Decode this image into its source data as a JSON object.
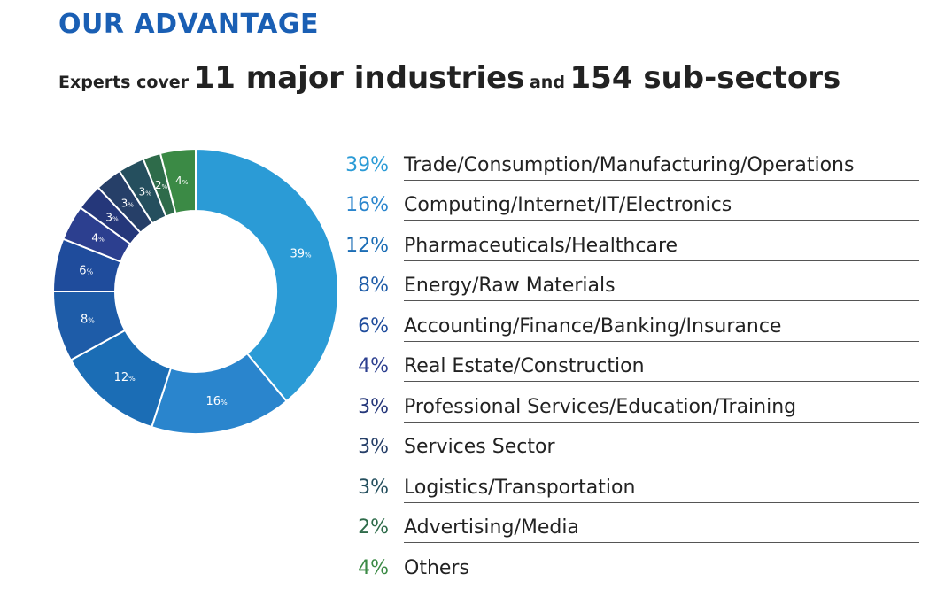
{
  "header": {
    "title": "OUR ADVANTAGE",
    "subtitle_prefix": "Experts cover",
    "industries_count": "11 major industries",
    "subtitle_mid": "and",
    "subsectors_count": "154 sub-sectors"
  },
  "chart_data": {
    "type": "pie",
    "style": "donut",
    "categories": [
      "Trade/Consumption/Manufacturing/Operations",
      "Computing/Internet/IT/Electronics",
      "Pharmaceuticals/Healthcare",
      "Energy/Raw Materials",
      "Accounting/Finance/Banking/Insurance",
      "Real Estate/Construction",
      "Professional Services/Education/Training",
      "Services Sector",
      "Logistics/Transportation",
      "Advertising/Media",
      "Others"
    ],
    "values": [
      39,
      16,
      12,
      8,
      6,
      4,
      3,
      3,
      3,
      2,
      4
    ],
    "value_labels": [
      "39%",
      "16%",
      "12%",
      "8%",
      "6%",
      "4%",
      "3%",
      "3%",
      "3%",
      "2%",
      "4%"
    ],
    "colors": [
      "#2b9bd6",
      "#2a85cd",
      "#1b6db5",
      "#1e5ca8",
      "#1f4c9c",
      "#2c3f8f",
      "#25377a",
      "#263f68",
      "#254f5e",
      "#2e6b4a",
      "#3b8a45"
    ],
    "legend_position": "right",
    "direction": "clockwise from top"
  }
}
